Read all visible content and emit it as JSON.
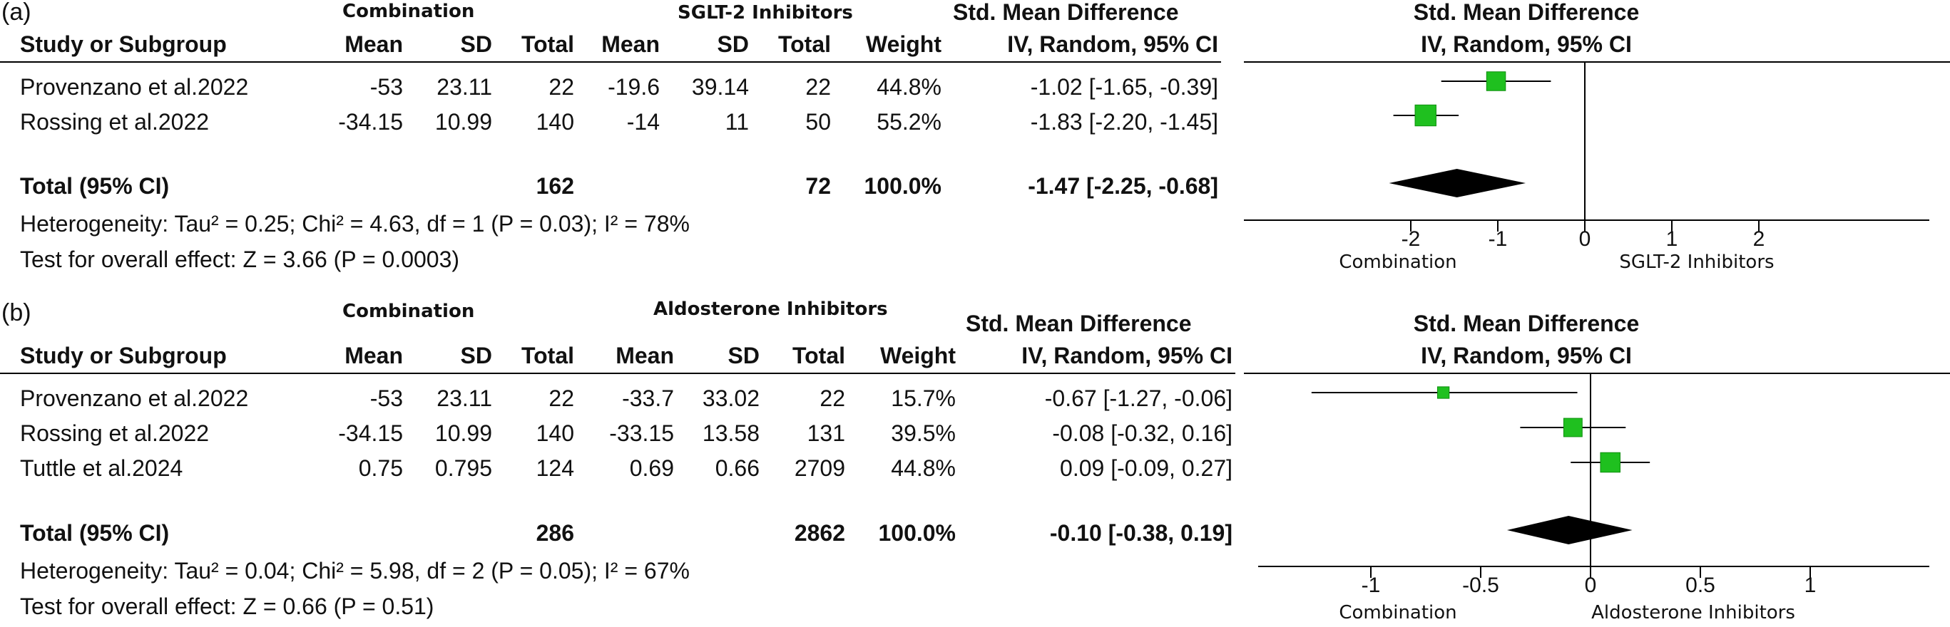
{
  "chart_data": [
    {
      "panel_label": "(a)",
      "type": "forest",
      "group1": "Combination",
      "group2": "SGLT-2 Inhibitors",
      "col_headers": {
        "study": "Study or Subgroup",
        "mean": "Mean",
        "sd": "SD",
        "total": "Total",
        "weight": "Weight",
        "effect_title": "Std. Mean Difference",
        "effect_sub": "IV, Random, 95% CI"
      },
      "plot_title": "Std. Mean Difference",
      "plot_sub": "IV, Random, 95% CI",
      "studies": [
        {
          "name": "Provenzano et al.2022",
          "mean1": "-53",
          "sd1": "23.11",
          "n1": "22",
          "mean2": "-19.6",
          "sd2": "39.14",
          "n2": "22",
          "weight": "44.8%",
          "ci_text": "-1.02 [-1.65, -0.39]",
          "smd": -1.02,
          "lo": -1.65,
          "hi": -0.39,
          "w": 44.8
        },
        {
          "name": "Rossing et al.2022",
          "mean1": "-34.15",
          "sd1": "10.99",
          "n1": "140",
          "mean2": "-14",
          "sd2": "11",
          "n2": "50",
          "weight": "55.2%",
          "ci_text": "-1.83 [-2.20, -1.45]",
          "smd": -1.83,
          "lo": -2.2,
          "hi": -1.45,
          "w": 55.2
        }
      ],
      "total": {
        "label": "Total (95% CI)",
        "n1": "162",
        "n2": "72",
        "weight": "100.0%",
        "ci_text": "-1.47 [-2.25, -0.68]",
        "smd": -1.47,
        "lo": -2.25,
        "hi": -0.68
      },
      "heterogeneity": "Heterogeneity: Tau² = 0.25; Chi² = 4.63, df = 1 (P = 0.03); I² = 78%",
      "overall": "Test for overall effect: Z = 3.66 (P = 0.0003)",
      "xlim": [
        -4,
        4
      ],
      "ticks": [
        -2,
        -1,
        0,
        1,
        2
      ],
      "tick_labels": [
        "-2",
        "-1",
        "0",
        "1",
        "2"
      ],
      "left_label": "Combination",
      "right_label": "SGLT-2 Inhibitors"
    },
    {
      "panel_label": "(b)",
      "type": "forest",
      "group1": "Combination",
      "group2": "Aldosterone Inhibitors",
      "col_headers": {
        "study": "Study or Subgroup",
        "mean": "Mean",
        "sd": "SD",
        "total": "Total",
        "weight": "Weight",
        "effect_title": "Std. Mean Difference",
        "effect_sub": "IV, Random, 95% CI"
      },
      "plot_title": "Std. Mean Difference",
      "plot_sub": "IV, Random, 95% CI",
      "studies": [
        {
          "name": "Provenzano et al.2022",
          "mean1": "-53",
          "sd1": "23.11",
          "n1": "22",
          "mean2": "-33.7",
          "sd2": "33.02",
          "n2": "22",
          "weight": "15.7%",
          "ci_text": "-0.67 [-1.27, -0.06]",
          "smd": -0.67,
          "lo": -1.27,
          "hi": -0.06,
          "w": 15.7
        },
        {
          "name": "Rossing et al.2022",
          "mean1": "-34.15",
          "sd1": "10.99",
          "n1": "140",
          "mean2": "-33.15",
          "sd2": "13.58",
          "n2": "131",
          "weight": "39.5%",
          "ci_text": "-0.08 [-0.32, 0.16]",
          "smd": -0.08,
          "lo": -0.32,
          "hi": 0.16,
          "w": 39.5
        },
        {
          "name": "Tuttle et al.2024",
          "mean1": "0.75",
          "sd1": "0.795",
          "n1": "124",
          "mean2": "0.69",
          "sd2": "0.66",
          "n2": "2709",
          "weight": "44.8%",
          "ci_text": "0.09 [-0.09, 0.27]",
          "smd": 0.09,
          "lo": -0.09,
          "hi": 0.27,
          "w": 44.8
        }
      ],
      "total": {
        "label": "Total (95% CI)",
        "n1": "286",
        "n2": "2862",
        "weight": "100.0%",
        "ci_text": "-0.10 [-0.38, 0.19]",
        "smd": -0.1,
        "lo": -0.38,
        "hi": 0.19
      },
      "heterogeneity": "Heterogeneity: Tau² = 0.04; Chi² = 5.98, df = 2 (P = 0.05); I² = 67%",
      "overall": "Test for overall effect: Z = 0.66 (P = 0.51)",
      "xlim": [
        -1.5,
        1.5
      ],
      "ticks": [
        -1,
        -0.5,
        0,
        0.5,
        1
      ],
      "tick_labels": [
        "-1",
        "-0.5",
        "0",
        "0.5",
        "1"
      ],
      "left_label": "Combination",
      "right_label": "Aldosterone Inhibitors"
    }
  ],
  "colors": {
    "marker": "#1fc01f",
    "marker_edge": "#0e8f0e",
    "diamond": "#000000",
    "line": "#000000"
  }
}
